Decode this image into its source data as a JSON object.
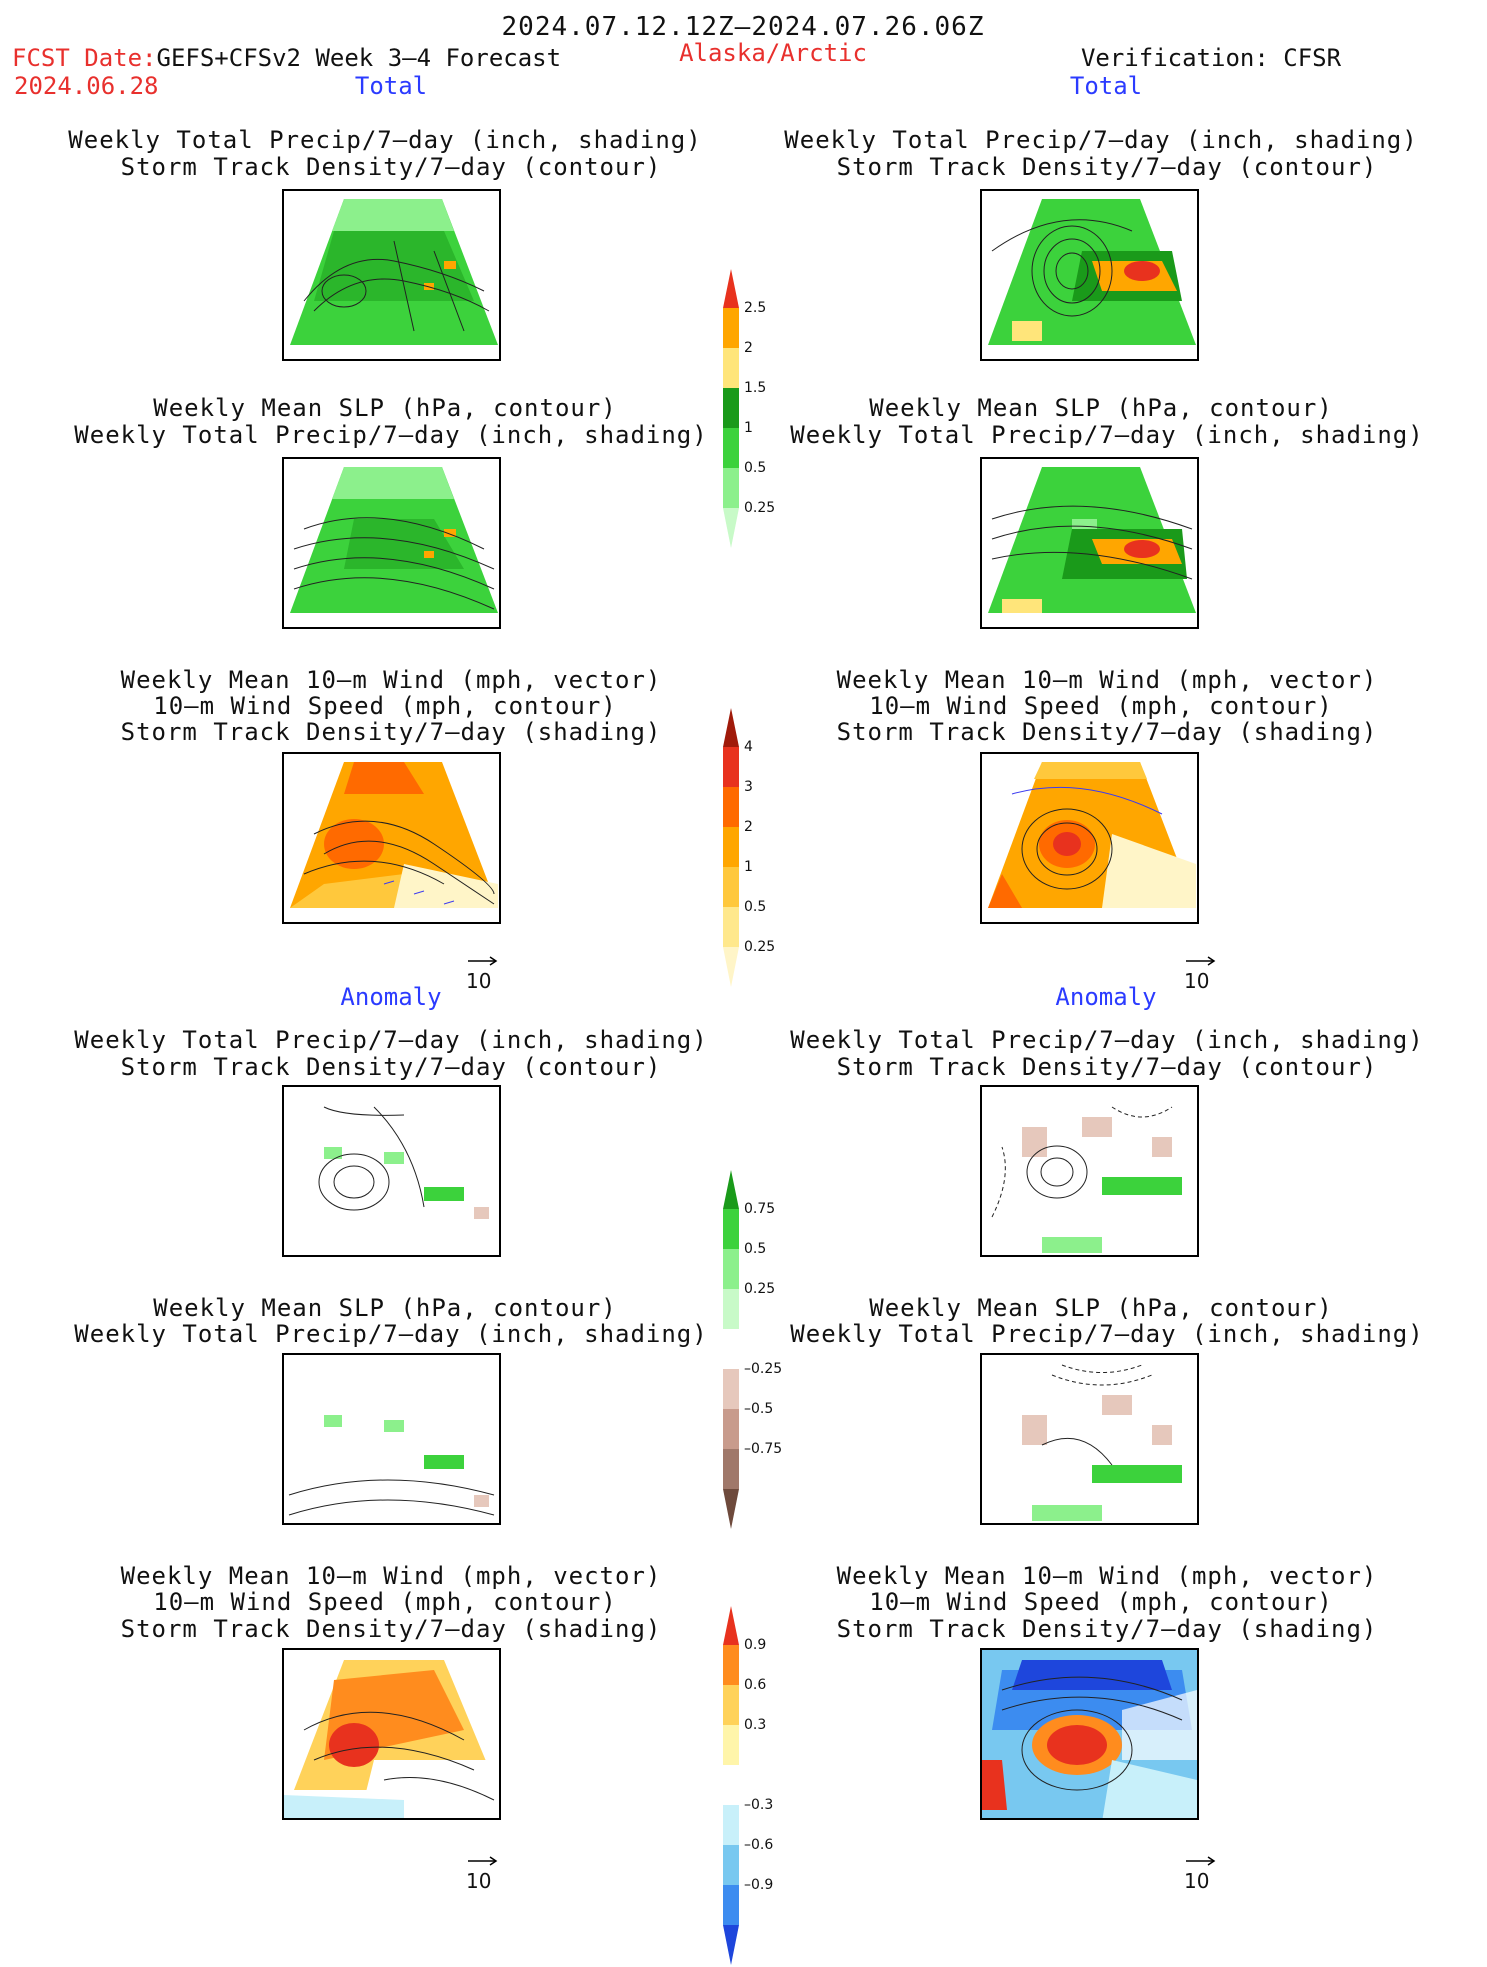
{
  "header": {
    "date_range": "2024.07.12.12Z–2024.07.26.06Z",
    "fcst_label": "FCST Date:",
    "fcst_model": "GEFS+CFSv2 Week 3–4 Forecast",
    "fcst_date": "2024.06.28",
    "region": "Alaska/Arctic",
    "verification": "Verification: CFSR"
  },
  "sections": {
    "total": "Total",
    "anomaly": "Anomaly"
  },
  "captions": {
    "precip_track": [
      "Weekly Total Precip/7–day (inch, shading)",
      "Storm Track Density/7–day (contour)"
    ],
    "slp_precip": [
      "Weekly Mean SLP (hPa, contour)",
      "Weekly Total Precip/7–day (inch, shading)"
    ],
    "wind_track": [
      "Weekly Mean 10–m Wind (mph, vector)",
      "10–m Wind Speed (mph, contour)",
      "Storm Track Density/7–day (shading)"
    ]
  },
  "arrow_ref_label": "10",
  "colorbars": {
    "precip_total": {
      "labels": [
        "2.5",
        "2",
        "1.5",
        "1",
        "0.5",
        "0.25"
      ],
      "colors": [
        "#e8321e",
        "#ffa600",
        "#ffe57a",
        "#1a9a1a",
        "#3cd23c",
        "#8cf08c",
        "#c8fac8"
      ]
    },
    "track_total": {
      "labels": [
        "4",
        "3",
        "2",
        "1",
        "0.5",
        "0.25"
      ],
      "colors": [
        "#a01a0a",
        "#e8321e",
        "#ff6a00",
        "#ffa600",
        "#ffc83c",
        "#ffe88c",
        "#fff5c8"
      ]
    },
    "precip_anom": {
      "labels": [
        "0.75",
        "0.5",
        "0.25",
        "–0.25",
        "–0.5",
        "–0.75"
      ],
      "colors": [
        "#1a9a1a",
        "#3cd23c",
        "#8cf08c",
        "#c8fac8",
        "#ffffff",
        "#e6c8bc",
        "#c89b8c",
        "#a0786a",
        "#6e4a3c"
      ]
    },
    "track_anom": {
      "labels": [
        "0.9",
        "0.6",
        "0.3",
        "–0.3",
        "–0.6",
        "–0.9"
      ],
      "colors": [
        "#e8321e",
        "#ff8c1e",
        "#ffd25a",
        "#fff5aa",
        "#ffffff",
        "#c8f0fa",
        "#78c8f0",
        "#3c8cf0",
        "#1e46dc"
      ]
    }
  },
  "style": {
    "green_dark": "#1a9a1a",
    "green": "#3cd23c",
    "green_light": "#8cf08c",
    "orange": "#ffa600",
    "orange_red": "#ff6a00",
    "red": "#e8321e",
    "brown_light": "#e6c8bc",
    "blue": "#3c8cf0",
    "blue_dark": "#1e46dc",
    "blue_light": "#c8f0fa"
  }
}
